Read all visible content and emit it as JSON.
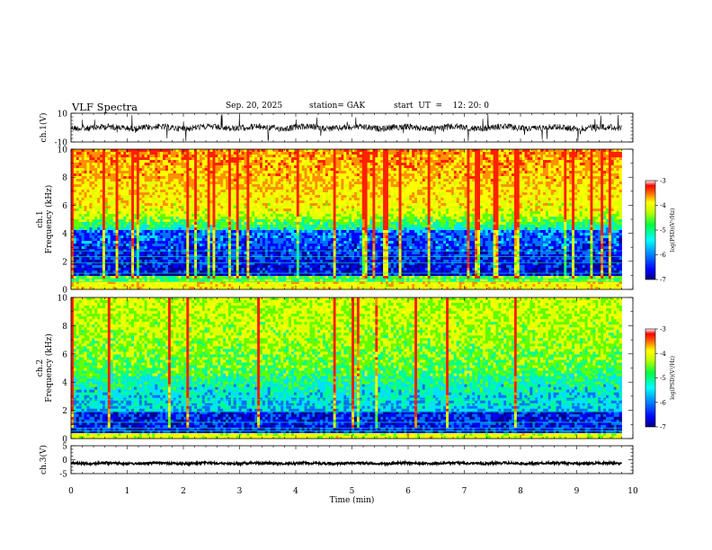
{
  "header": {
    "title": "VLF  Spectra",
    "date": "Sep. 20, 2025",
    "station": "station= GAK",
    "start": "start  UT  =    12: 20: 0"
  },
  "colors": {
    "background": "#ffffff",
    "waveform": "#000000",
    "colormap": [
      "#000080",
      "#0000ff",
      "#0080ff",
      "#00ffff",
      "#00ff80",
      "#80ff00",
      "#ffff00",
      "#ff8000",
      "#ff0000",
      "#ffffff"
    ]
  },
  "chart_data": [
    {
      "type": "line",
      "id": "ch1-waveform",
      "ylabel": "ch.1(V)",
      "ylim": [
        -10,
        10
      ],
      "yticks": [
        10,
        -10
      ],
      "xlim": [
        0,
        10
      ],
      "baseline": 0
    },
    {
      "type": "heatmap",
      "id": "ch1-spectrogram",
      "ylabel": "ch.1\nFrequency  (kHz)",
      "ylabel_line1": "ch.1",
      "ylabel_line2": "Frequency  (kHz)",
      "ylim": [
        0,
        10
      ],
      "yticks": [
        10,
        8,
        6,
        4,
        2,
        0
      ],
      "xlim": [
        0,
        10
      ],
      "data_end_min": 9.8,
      "colorbar": {
        "label": "log(PSD)(V²/Hz)",
        "range": [
          -7,
          -3
        ],
        "ticks": [
          -3,
          -4,
          -5,
          -6,
          -7
        ]
      }
    },
    {
      "type": "heatmap",
      "id": "ch2-spectrogram",
      "ylabel": "ch.2\nFrequency  (kHz)",
      "ylabel_line1": "ch.2",
      "ylabel_line2": "Frequency  (kHz)",
      "ylim": [
        0,
        10
      ],
      "yticks": [
        10,
        8,
        6,
        4,
        2,
        0
      ],
      "xlim": [
        0,
        10
      ],
      "data_end_min": 9.8,
      "colorbar": {
        "label": "log(PSD)(V²/Hz)",
        "range": [
          -7,
          -3
        ],
        "ticks": [
          -3,
          -4,
          -5,
          -6,
          -7
        ]
      }
    },
    {
      "type": "line",
      "id": "ch3-waveform",
      "ylabel": "ch.3(V)",
      "ylim": [
        -5,
        5
      ],
      "yticks": [
        5,
        0,
        -5
      ],
      "xlim": [
        0,
        10
      ],
      "baseline": -1.3
    }
  ],
  "xaxis": {
    "label": "Time  (min)",
    "ticks": [
      "0",
      "1",
      "2",
      "3",
      "4",
      "5",
      "6",
      "7",
      "8",
      "9",
      "10"
    ]
  }
}
